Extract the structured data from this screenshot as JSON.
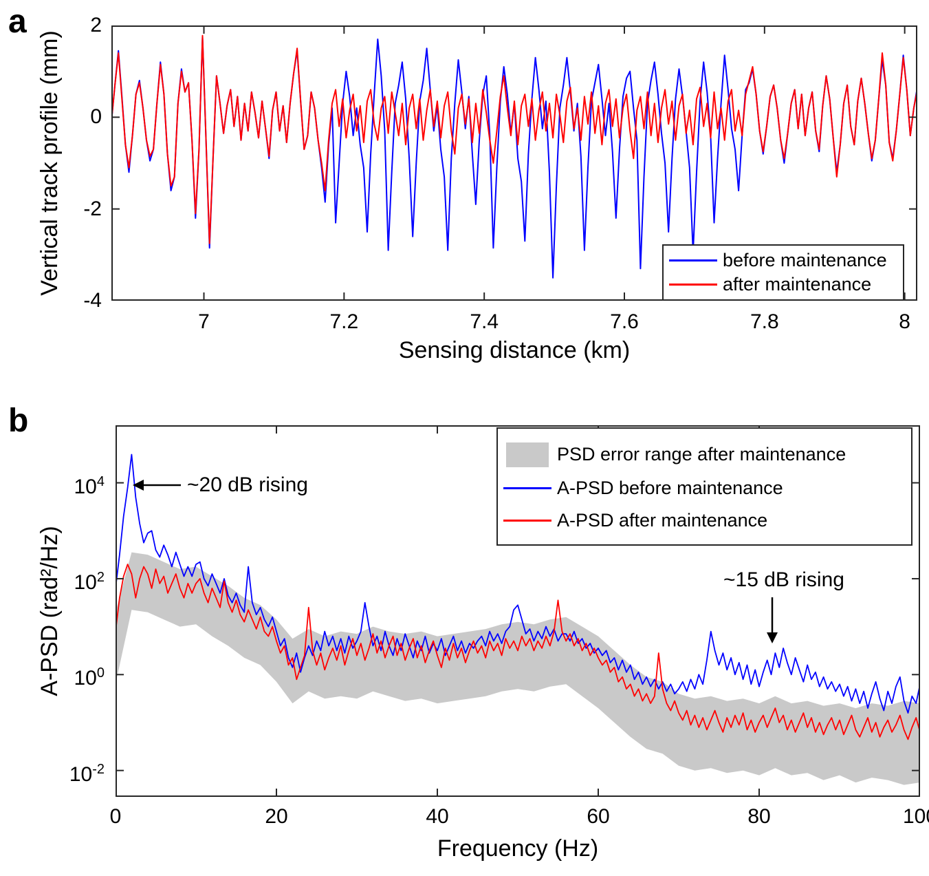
{
  "figure": {
    "panel_a_letter": "a",
    "panel_b_letter": "b"
  },
  "colors": {
    "before": "#0000ff",
    "after": "#ff0000",
    "band": "#c9c9c9",
    "axis": "#262626"
  },
  "chart_data": [
    {
      "id": "a",
      "type": "line",
      "xlabel": "Sensing distance (km)",
      "ylabel": "Vertical track profile (mm)",
      "xlim": [
        6.868,
        8.018
      ],
      "ylim": [
        -4,
        2
      ],
      "xticks": [
        7,
        7.2,
        7.4,
        7.6,
        7.8,
        8
      ],
      "xtick_labels": [
        "7",
        "7.2",
        "7.4",
        "7.6",
        "7.8",
        "8"
      ],
      "yticks": [
        2,
        0,
        -2,
        -4
      ],
      "ytick_labels": [
        "2",
        "0",
        "-2",
        "-4"
      ],
      "grid": false,
      "x_start": 6.868,
      "x_step": 0.005,
      "legend": {
        "position": "bottom-right",
        "items": [
          "before maintenance",
          "after maintenance"
        ]
      },
      "series": [
        {
          "name": "before maintenance",
          "color": "#0000ff",
          "y": [
            -0.1,
            0.7,
            1.45,
            0.45,
            -0.6,
            -1.2,
            -0.4,
            0.5,
            0.8,
            0.2,
            -0.5,
            -0.95,
            -0.7,
            0.3,
            1.2,
            0.5,
            -0.8,
            -1.6,
            -1.3,
            0.3,
            1.05,
            0.55,
            0.75,
            -0.5,
            -2.2,
            -0.7,
            1.75,
            -0.5,
            -2.85,
            -0.9,
            0.9,
            0.3,
            -0.35,
            0.25,
            0.6,
            -0.2,
            0.45,
            -0.5,
            0.3,
            -0.3,
            0.55,
            0.1,
            -0.45,
            0.35,
            -0.25,
            -0.9,
            0.15,
            0.55,
            -0.3,
            0.25,
            -0.55,
            0.3,
            0.95,
            1.45,
            0.35,
            -0.7,
            -0.4,
            0.55,
            0.2,
            -0.5,
            -1.1,
            -1.85,
            -0.6,
            0.2,
            -2.3,
            -1.0,
            0.3,
            1.0,
            0.45,
            -0.4,
            0.2,
            -0.6,
            -1.1,
            -2.5,
            -0.8,
            0.5,
            1.7,
            0.9,
            -0.3,
            -2.9,
            -1.2,
            0.3,
            0.7,
            1.2,
            0.4,
            -0.9,
            -2.6,
            -1.0,
            0.35,
            0.8,
            1.5,
            0.6,
            -0.3,
            0.25,
            -0.7,
            -1.3,
            -2.9,
            -0.9,
            0.3,
            1.25,
            0.55,
            -0.25,
            0.45,
            -0.8,
            -1.9,
            -0.5,
            0.5,
            0.9,
            -0.4,
            -2.85,
            -1.1,
            0.35,
            1.1,
            0.5,
            -0.35,
            0.3,
            -0.9,
            -1.4,
            -2.7,
            -0.8,
            0.4,
            1.3,
            0.6,
            -0.25,
            0.35,
            -1.2,
            -3.5,
            -1.5,
            0.2,
            0.7,
            1.3,
            0.55,
            -0.3,
            0.3,
            -0.85,
            -2.9,
            -1.1,
            0.35,
            0.75,
            1.15,
            0.4,
            -0.4,
            0.3,
            -0.75,
            -2.2,
            -0.7,
            0.45,
            0.85,
            1.0,
            0.2,
            -0.5,
            -3.3,
            -1.3,
            0.3,
            0.8,
            1.2,
            0.5,
            -0.35,
            -1.0,
            -2.5,
            -0.9,
            0.4,
            1.05,
            0.45,
            -0.3,
            -1.1,
            -2.95,
            -1.2,
            0.35,
            1.2,
            0.55,
            -0.4,
            -2.3,
            -0.9,
            0.3,
            1.35,
            0.6,
            -0.25,
            -0.7,
            -1.6,
            -0.4,
            0.6,
            0.75,
            1.05,
            0.5,
            -0.3,
            -0.8,
            -0.2,
            0.45,
            0.7,
            0.2,
            -0.5,
            -1.0,
            -0.35,
            0.3,
            0.6,
            -0.25,
            0.5,
            -0.4,
            0.2,
            0.55,
            -0.3,
            -0.75,
            0.25,
            0.9,
            0.4,
            -0.45,
            -1.2,
            -0.6,
            0.3,
            0.7,
            -0.2,
            -0.6,
            0.35,
            0.85,
            0.3,
            -0.35,
            -0.95,
            -0.5,
            0.4,
            1.25,
            0.7,
            -0.55,
            -0.9,
            -0.3,
            0.5,
            1.35,
            0.6,
            -0.4,
            0.2,
            0.65
          ]
        },
        {
          "name": "after maintenance",
          "color": "#ff0000",
          "y": [
            -0.1,
            0.7,
            1.4,
            0.4,
            -0.6,
            -1.1,
            -0.4,
            0.5,
            0.75,
            0.2,
            -0.5,
            -0.85,
            -0.7,
            0.3,
            1.15,
            0.5,
            -0.8,
            -1.5,
            -1.3,
            0.3,
            1.0,
            0.55,
            0.75,
            -0.5,
            -2.1,
            -0.7,
            1.78,
            -0.5,
            -2.75,
            -0.9,
            0.9,
            0.3,
            -0.35,
            0.25,
            0.6,
            -0.2,
            0.45,
            -0.5,
            0.3,
            -0.3,
            0.55,
            0.1,
            -0.45,
            0.35,
            -0.25,
            -0.85,
            0.15,
            0.55,
            -0.3,
            0.25,
            -0.55,
            0.3,
            0.95,
            1.5,
            0.35,
            -0.7,
            -0.4,
            0.55,
            0.2,
            -0.5,
            -1.0,
            -1.6,
            -0.5,
            0.3,
            0.6,
            -0.2,
            0.4,
            -0.45,
            0.15,
            0.5,
            -0.3,
            0.25,
            -0.55,
            0.35,
            0.6,
            -0.15,
            -0.5,
            0.2,
            0.45,
            -0.35,
            0.55,
            0.1,
            -0.4,
            0.3,
            -0.6,
            0.2,
            0.5,
            -0.25,
            0.4,
            -0.5,
            0.15,
            0.6,
            -0.2,
            0.35,
            -0.45,
            0.25,
            0.55,
            -0.3,
            -0.8,
            0.2,
            0.5,
            -0.15,
            0.4,
            -0.55,
            0.3,
            -0.35,
            0.6,
            0.1,
            -0.5,
            -1.0,
            -0.3,
            0.45,
            0.9,
            0.2,
            -0.4,
            0.35,
            -0.6,
            0.25,
            0.5,
            -0.2,
            0.4,
            -0.5,
            0.15,
            0.55,
            -0.3,
            0.3,
            -0.45,
            0.5,
            0.05,
            -0.55,
            0.35,
            0.65,
            -0.25,
            0.2,
            -0.5,
            0.45,
            -0.15,
            0.55,
            -0.35,
            0.25,
            -0.6,
            0.3,
            0.6,
            -0.2,
            0.4,
            -0.45,
            0.2,
            0.5,
            -0.3,
            -0.9,
            0.15,
            0.45,
            -0.25,
            0.55,
            -0.4,
            0.3,
            -0.55,
            0.2,
            0.6,
            -0.15,
            0.35,
            -0.5,
            0.25,
            0.5,
            -0.35,
            0.15,
            -0.6,
            0.4,
            0.65,
            -0.2,
            0.3,
            -0.45,
            0.55,
            -0.25,
            0.2,
            -0.5,
            0.35,
            0.6,
            -0.3,
            0.15,
            -0.4,
            0.5,
            0.8,
            1.1,
            0.5,
            -0.3,
            -0.75,
            -0.2,
            0.45,
            0.7,
            0.2,
            -0.5,
            -0.9,
            -0.35,
            0.3,
            0.6,
            -0.25,
            0.5,
            -0.4,
            0.2,
            0.55,
            -0.3,
            -0.7,
            0.25,
            0.9,
            0.4,
            -0.45,
            -1.3,
            -0.6,
            0.3,
            0.7,
            -0.2,
            -0.6,
            0.35,
            0.85,
            0.3,
            -0.35,
            -0.9,
            -0.5,
            0.4,
            1.4,
            0.7,
            -0.55,
            -0.95,
            -0.3,
            0.5,
            1.3,
            0.6,
            -0.4,
            0.2,
            0.6
          ]
        }
      ]
    },
    {
      "id": "b",
      "type": "line-with-band",
      "yscale": "log",
      "xlabel": "Frequency (Hz)",
      "ylabel": "A-PSD (rad²/Hz)",
      "xlim": [
        0,
        100
      ],
      "ylim": [
        0.0028,
        158000
      ],
      "ylim_log10": [
        -2.55,
        5.2
      ],
      "xticks": [
        0,
        20,
        40,
        60,
        80,
        100
      ],
      "xtick_labels": [
        "0",
        "20",
        "40",
        "60",
        "80",
        "100"
      ],
      "ytick_exponents": [
        "4",
        "2",
        "0",
        "-2"
      ],
      "grid": false,
      "x_start": 0,
      "x_step": 0.5,
      "annotations": [
        {
          "text": "~20 dB rising",
          "arrow": "left",
          "points_to": "blue peak near 2 Hz"
        },
        {
          "text": "~15 dB rising",
          "arrow": "down",
          "points_to": "blue band near 83 Hz"
        }
      ],
      "legend": {
        "position": "top-right",
        "items": [
          "PSD error range after maintenance",
          "A-PSD before maintenance",
          "A-PSD after maintenance"
        ]
      },
      "band": {
        "name": "PSD error range after maintenance",
        "color": "#c9c9c9",
        "x_start": 0,
        "x_step": 2,
        "upper_log10": [
          1.3,
          2.55,
          2.5,
          2.35,
          2.2,
          2.25,
          2.05,
          1.85,
          1.6,
          1.45,
          1.15,
          0.75,
          0.95,
          0.8,
          0.9,
          0.85,
          1.0,
          0.9,
          0.85,
          0.9,
          0.8,
          0.85,
          0.9,
          0.95,
          1.05,
          1.1,
          1.05,
          1.15,
          1.2,
          1.0,
          0.8,
          0.5,
          0.2,
          -0.05,
          -0.15,
          -0.4,
          -0.5,
          -0.45,
          -0.55,
          -0.5,
          -0.6,
          -0.45,
          -0.6,
          -0.55,
          -0.65,
          -0.6,
          -0.7,
          -0.6,
          -0.65,
          -0.55,
          -0.6
        ],
        "lower_log10": [
          -0.2,
          1.35,
          1.3,
          1.15,
          1.0,
          1.05,
          0.8,
          0.6,
          0.35,
          0.2,
          -0.15,
          -0.6,
          -0.35,
          -0.5,
          -0.45,
          -0.5,
          -0.35,
          -0.45,
          -0.55,
          -0.5,
          -0.6,
          -0.55,
          -0.5,
          -0.45,
          -0.35,
          -0.3,
          -0.35,
          -0.25,
          -0.2,
          -0.45,
          -0.7,
          -1.0,
          -1.3,
          -1.55,
          -1.65,
          -1.9,
          -2.0,
          -1.95,
          -2.05,
          -2.0,
          -2.1,
          -1.95,
          -2.1,
          -2.05,
          -2.2,
          -2.1,
          -2.25,
          -2.15,
          -2.2,
          -2.3,
          -2.25
        ]
      },
      "series": [
        {
          "name": "A-PSD before maintenance",
          "color": "#0000ff",
          "log10": [
            1.8,
            2.5,
            3.3,
            3.9,
            4.59,
            3.7,
            3.15,
            2.75,
            2.95,
            3.0,
            2.6,
            2.45,
            2.7,
            2.5,
            2.25,
            2.55,
            2.3,
            2.05,
            2.25,
            2.05,
            2.3,
            2.35,
            2.0,
            1.85,
            2.1,
            1.9,
            1.7,
            2.0,
            1.65,
            1.5,
            1.7,
            1.45,
            1.3,
            2.25,
            1.5,
            1.25,
            1.4,
            1.15,
            1.0,
            1.2,
            0.9,
            0.6,
            0.75,
            0.35,
            0.15,
            0.45,
            0.05,
            0.35,
            0.6,
            0.4,
            0.7,
            0.5,
            0.9,
            0.6,
            0.8,
            0.5,
            0.75,
            0.45,
            0.8,
            0.55,
            0.7,
            0.9,
            1.5,
            1.0,
            0.6,
            0.8,
            0.5,
            0.9,
            0.6,
            0.4,
            0.75,
            0.5,
            0.85,
            0.6,
            0.35,
            0.7,
            0.5,
            0.8,
            0.45,
            0.65,
            0.5,
            0.75,
            0.4,
            0.6,
            0.8,
            0.5,
            0.7,
            0.45,
            0.65,
            0.55,
            0.7,
            0.8,
            0.6,
            0.9,
            0.7,
            0.85,
            0.65,
            0.9,
            1.0,
            1.35,
            1.45,
            1.15,
            0.85,
            0.95,
            0.7,
            0.9,
            0.75,
            1.0,
            0.8,
            0.95,
            0.7,
            0.85,
            0.85,
            0.7,
            0.9,
            0.65,
            0.75,
            0.55,
            0.65,
            0.45,
            0.55,
            0.4,
            0.5,
            0.25,
            0.35,
            0.1,
            0.3,
            0.05,
            0.2,
            -0.1,
            0.05,
            -0.2,
            -0.05,
            -0.25,
            -0.1,
            -0.3,
            -0.15,
            -0.35,
            -0.2,
            -0.4,
            -0.3,
            -0.15,
            -0.35,
            -0.1,
            -0.3,
            0.0,
            -0.2,
            0.3,
            0.9,
            0.5,
            0.2,
            0.45,
            0.1,
            0.35,
            0.0,
            0.25,
            -0.1,
            0.2,
            -0.2,
            0.1,
            -0.25,
            0.05,
            0.3,
            0.0,
            0.45,
            0.15,
            0.55,
            0.25,
            0.0,
            0.35,
            0.1,
            -0.15,
            0.2,
            -0.1,
            0.05,
            -0.25,
            -0.05,
            -0.3,
            -0.15,
            -0.35,
            -0.2,
            -0.45,
            -0.25,
            -0.55,
            -0.3,
            -0.6,
            -0.35,
            -0.7,
            -0.4,
            -0.15,
            -0.5,
            -0.75,
            -0.35,
            -0.6,
            -0.25,
            -0.05,
            -0.55,
            -0.8,
            -0.45,
            -0.6,
            -0.2
          ]
        },
        {
          "name": "A-PSD after maintenance",
          "color": "#ff0000",
          "log10": [
            0.9,
            1.6,
            2.05,
            2.3,
            2.1,
            1.6,
            2.0,
            2.25,
            2.1,
            1.8,
            2.2,
            1.9,
            2.05,
            1.7,
            1.9,
            2.1,
            1.8,
            1.6,
            1.9,
            1.7,
            1.9,
            2.0,
            1.7,
            1.5,
            1.8,
            1.6,
            1.4,
            1.95,
            1.5,
            1.3,
            1.55,
            1.25,
            1.1,
            1.35,
            1.15,
            0.95,
            1.2,
            0.9,
            0.8,
            1.0,
            0.7,
            0.45,
            0.6,
            0.2,
            0.35,
            -0.1,
            0.15,
            0.4,
            1.4,
            0.5,
            0.2,
            0.45,
            0.1,
            0.35,
            0.55,
            0.3,
            0.6,
            0.2,
            0.5,
            0.75,
            0.4,
            0.65,
            0.3,
            0.55,
            0.85,
            0.45,
            0.7,
            0.35,
            0.6,
            0.8,
            0.4,
            0.65,
            0.3,
            0.55,
            0.75,
            0.35,
            0.6,
            0.25,
            0.5,
            0.7,
            0.4,
            0.15,
            0.55,
            0.3,
            0.65,
            0.35,
            0.55,
            0.25,
            0.5,
            0.7,
            0.45,
            0.6,
            0.35,
            0.7,
            0.5,
            0.65,
            0.4,
            0.75,
            0.55,
            0.7,
            0.5,
            0.8,
            0.6,
            0.75,
            0.5,
            0.7,
            0.55,
            0.8,
            0.6,
            0.9,
            1.55,
            0.9,
            0.7,
            0.85,
            0.6,
            0.75,
            0.5,
            0.65,
            0.4,
            0.55,
            0.35,
            0.2,
            0.3,
            0.05,
            0.15,
            -0.15,
            -0.05,
            -0.3,
            -0.2,
            -0.45,
            -0.3,
            -0.55,
            -0.4,
            -0.6,
            -0.45,
            0.45,
            -0.3,
            -0.6,
            -0.75,
            -0.55,
            -0.8,
            -0.95,
            -0.75,
            -1.05,
            -0.85,
            -1.1,
            -0.9,
            -1.15,
            -0.95,
            -0.75,
            -1.0,
            -1.2,
            -0.9,
            -1.1,
            -0.85,
            -1.05,
            -0.8,
            -1.15,
            -0.95,
            -1.2,
            -1.0,
            -0.85,
            -1.1,
            -0.9,
            -0.7,
            -1.0,
            -0.85,
            -1.15,
            -0.95,
            -1.2,
            -1.0,
            -0.8,
            -1.1,
            -0.9,
            -1.2,
            -1.0,
            -1.25,
            -1.05,
            -0.9,
            -1.15,
            -0.95,
            -1.25,
            -1.05,
            -0.85,
            -1.15,
            -1.3,
            -1.1,
            -0.9,
            -1.2,
            -1.0,
            -1.3,
            -1.1,
            -0.95,
            -1.2,
            -1.05,
            -0.85,
            -1.15,
            -1.35,
            -1.1,
            -0.9,
            -1.2
          ]
        }
      ]
    }
  ]
}
